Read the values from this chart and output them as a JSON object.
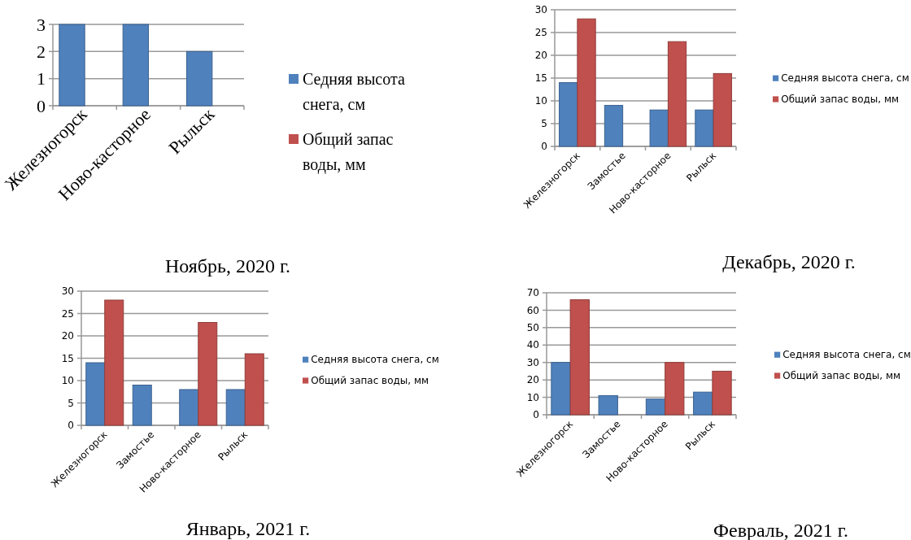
{
  "chart_data": [
    {
      "type": "bar",
      "title": "Ноябрь,  2020 г.",
      "categories": [
        "Железногорск",
        "Ново-касторное",
        "Рыльск"
      ],
      "series": [
        {
          "name": "Седняя высота снега, см",
          "color": "#4f81bd",
          "values": [
            3,
            3,
            2
          ]
        },
        {
          "name": "Общий запас воды, мм",
          "color": "#c0504d",
          "values": [
            null,
            null,
            null
          ]
        }
      ],
      "ylim": [
        0,
        3
      ],
      "yticks": [
        0,
        1,
        2,
        3
      ],
      "grid": "y",
      "legend": "right"
    },
    {
      "type": "bar",
      "title": "Декабрь, 2020 г.",
      "categories": [
        "Железногорск",
        "Замостье",
        "Ново-касторное",
        "Рыльск"
      ],
      "series": [
        {
          "name": "Седняя высота снега, см",
          "color": "#4f81bd",
          "values": [
            14,
            9,
            8,
            8
          ]
        },
        {
          "name": "Общий запас воды, мм",
          "color": "#c0504d",
          "values": [
            28,
            null,
            23,
            16
          ]
        }
      ],
      "ylim": [
        0,
        30
      ],
      "yticks": [
        0,
        5,
        10,
        15,
        20,
        25,
        30
      ],
      "grid": "y",
      "legend": "right"
    },
    {
      "type": "bar",
      "title": "Январь, 2021 г.",
      "categories": [
        "Железногорск",
        "Замостье",
        "Ново-касторное",
        "Рыльск"
      ],
      "series": [
        {
          "name": "Седняя высота снега, см",
          "color": "#4f81bd",
          "values": [
            14,
            9,
            8,
            8
          ]
        },
        {
          "name": "Общий запас воды, мм",
          "color": "#c0504d",
          "values": [
            28,
            null,
            23,
            16
          ]
        }
      ],
      "ylim": [
        0,
        30
      ],
      "yticks": [
        0,
        5,
        10,
        15,
        20,
        25,
        30
      ],
      "grid": "y",
      "legend": "right"
    },
    {
      "type": "bar",
      "title": "Февраль, 2021 г.",
      "categories": [
        "Железногорск",
        "Замостье",
        "Ново-касторное",
        "Рыльск"
      ],
      "series": [
        {
          "name": "Седняя высота снега, см",
          "color": "#4f81bd",
          "values": [
            30,
            11,
            9,
            13
          ]
        },
        {
          "name": "Общий запас воды, мм",
          "color": "#c0504d",
          "values": [
            66,
            null,
            30,
            25
          ]
        }
      ],
      "ylim": [
        0,
        70
      ],
      "yticks": [
        0,
        10,
        20,
        30,
        40,
        50,
        60,
        70
      ],
      "grid": "y",
      "legend": "right"
    }
  ]
}
